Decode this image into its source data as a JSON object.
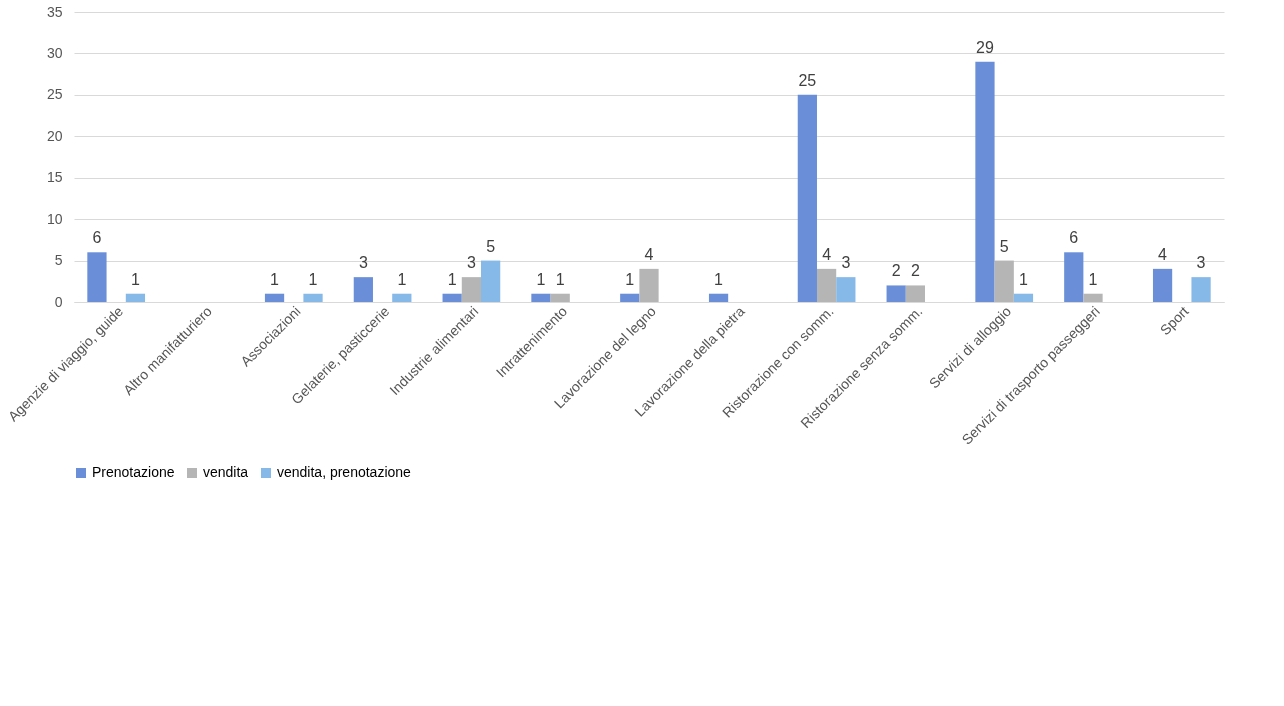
{
  "chart_data": {
    "type": "bar",
    "categories": [
      "Agenzie di viaggio, guide",
      "Altro manifatturiero",
      "Associazioni",
      "Gelaterie, pasticcerie",
      "Industrie alimentari",
      "Intrattenimento",
      "Lavorazione del legno",
      "Lavorazione della pietra",
      "Ristorazione con somm.",
      "Ristorazione senza somm.",
      "Servizi di alloggio",
      "Servizi di trasporto passeggeri",
      "Sport"
    ],
    "series": [
      {
        "name": "Prenotazione",
        "color": "#6a8fd8",
        "values": [
          6,
          null,
          1,
          3,
          1,
          1,
          1,
          1,
          25,
          2,
          29,
          6,
          4
        ]
      },
      {
        "name": "vendita",
        "color": "#b5b5b5",
        "values": [
          null,
          null,
          null,
          null,
          3,
          1,
          4,
          null,
          4,
          2,
          5,
          1,
          null
        ]
      },
      {
        "name": "vendita, prenotazione",
        "color": "#86b8e8",
        "values": [
          1,
          null,
          1,
          1,
          5,
          null,
          null,
          null,
          3,
          null,
          1,
          null,
          3
        ]
      }
    ],
    "ylim": [
      0,
      35
    ],
    "yticks": [
      0,
      5,
      10,
      15,
      20,
      25,
      30,
      35
    ],
    "grid": "y",
    "legend": "bottom",
    "data_labels": true
  }
}
